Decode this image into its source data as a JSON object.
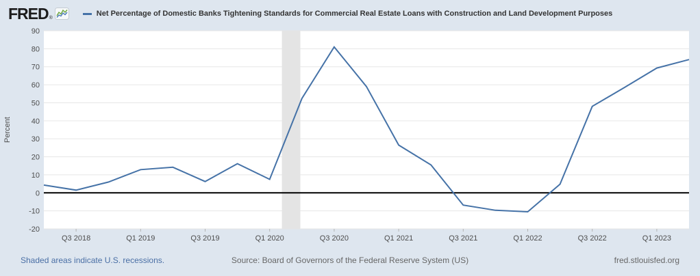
{
  "header": {
    "logo_text": "FRED",
    "logo_registered": "®",
    "series_title": "Net Percentage of Domestic Banks Tightening Standards for Commercial Real Estate Loans with Construction and Land Development Purposes"
  },
  "footer": {
    "recession_note": "Shaded areas indicate U.S. recessions.",
    "source": "Source: Board of Governors of the Federal Reserve System (US)",
    "site": "fred.stlouisfed.org"
  },
  "y_axis": {
    "title": "Percent",
    "ticks": [
      90,
      80,
      70,
      60,
      50,
      40,
      30,
      20,
      10,
      0,
      -10,
      -20
    ]
  },
  "x_axis": {
    "ticks": [
      {
        "label": "Q3 2018",
        "index": 1
      },
      {
        "label": "Q1 2019",
        "index": 3
      },
      {
        "label": "Q3 2019",
        "index": 5
      },
      {
        "label": "Q1 2020",
        "index": 7
      },
      {
        "label": "Q3 2020",
        "index": 9
      },
      {
        "label": "Q1 2021",
        "index": 11
      },
      {
        "label": "Q3 2021",
        "index": 13
      },
      {
        "label": "Q1 2022",
        "index": 15
      },
      {
        "label": "Q3 2022",
        "index": 17
      },
      {
        "label": "Q1 2023",
        "index": 19
      }
    ]
  },
  "chart_data": {
    "type": "line",
    "title": "Net Percentage of Domestic Banks Tightening Standards for Commercial Real Estate Loans with Construction and Land Development Purposes",
    "xlabel": "",
    "ylabel": "Percent",
    "ylim": [
      -20,
      90
    ],
    "grid": true,
    "legend_position": "top",
    "categories": [
      "Q2 2018",
      "Q3 2018",
      "Q4 2018",
      "Q1 2019",
      "Q2 2019",
      "Q3 2019",
      "Q4 2019",
      "Q1 2020",
      "Q2 2020",
      "Q3 2020",
      "Q4 2020",
      "Q1 2021",
      "Q2 2021",
      "Q3 2021",
      "Q4 2021",
      "Q1 2022",
      "Q2 2022",
      "Q3 2022",
      "Q4 2022",
      "Q1 2023",
      "Q2 2023"
    ],
    "series": [
      {
        "name": "Net Percentage of Domestic Banks Tightening Standards for Commercial Real Estate Loans with Construction and Land Development Purposes",
        "color": "#4572a7",
        "values": [
          4.3,
          1.5,
          6.0,
          12.9,
          14.2,
          6.3,
          16.2,
          7.5,
          52.4,
          81.0,
          59.0,
          26.5,
          15.5,
          -6.8,
          -9.7,
          -10.5,
          4.8,
          48.0,
          58.5,
          69.3,
          74.0
        ]
      }
    ],
    "recession_bands": [
      {
        "start_index": 7.38,
        "end_index": 7.95
      }
    ],
    "zero_line": true
  },
  "colors": {
    "background": "#dee6ef",
    "plot_background": "#ffffff",
    "gridline": "#e6e6e6",
    "recession_band": "#e4e4e4",
    "zero_line": "#000000",
    "series_line": "#4572a7",
    "title_text": "#333333",
    "tick_text": "#4d4d4d",
    "tick_mark": "#b3b3b3",
    "link_blue": "#4a6fa5",
    "footer_gray": "#666666",
    "logo_black": "#1c1c1c",
    "logo_icon_green": "#6ba53a",
    "logo_icon_blue": "#4b7ab8"
  }
}
